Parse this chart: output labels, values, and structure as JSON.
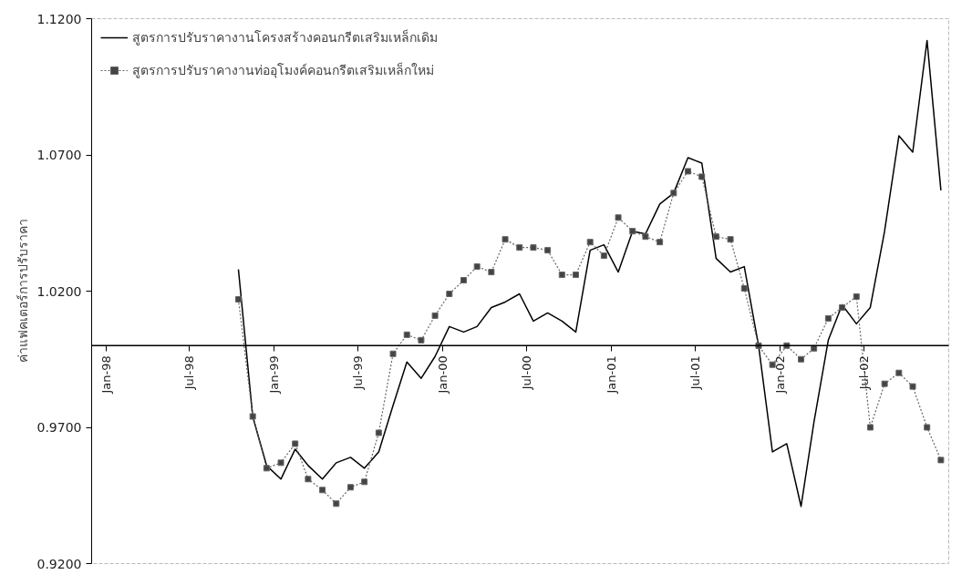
{
  "chart_data": {
    "type": "line",
    "ylabel": "ค่าแฟคเตอร์การปรับราคา",
    "x": [
      "1998-10-15",
      "1998-11-15",
      "1998-12-15",
      "1999-01-15",
      "1999-02-15",
      "1999-03-15",
      "1999-04-15",
      "1999-05-15",
      "1999-06-15",
      "1999-07-15",
      "1999-08-15",
      "1999-09-15",
      "1999-10-15",
      "1999-11-15",
      "1999-12-15",
      "2000-01-15",
      "2000-02-15",
      "2000-03-15",
      "2000-04-15",
      "2000-05-15",
      "2000-06-15",
      "2000-07-15",
      "2000-08-15",
      "2000-09-15",
      "2000-10-15",
      "2000-11-15",
      "2000-12-15",
      "2001-01-15",
      "2001-02-15",
      "2001-03-15",
      "2001-04-15",
      "2001-05-15",
      "2001-06-15",
      "2001-07-15",
      "2001-08-15",
      "2001-09-15",
      "2001-10-15",
      "2001-11-15",
      "2001-12-15",
      "2002-01-15",
      "2002-02-15",
      "2002-03-15",
      "2002-04-15",
      "2002-05-15",
      "2002-06-15",
      "2002-07-15",
      "2002-08-15",
      "2002-09-15",
      "2002-10-15",
      "2002-11-15",
      "2002-12-15"
    ],
    "series": [
      {
        "name": "สูตรการปรับราคางานโครงสร้างคอนกรีตเสริมเหล็กเดิม",
        "color": "#000000",
        "marker": "none",
        "line_style": "solid",
        "values": [
          1.028,
          0.974,
          0.956,
          0.951,
          0.962,
          0.956,
          0.951,
          0.957,
          0.959,
          0.955,
          0.961,
          0.978,
          0.994,
          0.988,
          0.996,
          1.007,
          1.005,
          1.007,
          1.014,
          1.016,
          1.019,
          1.009,
          1.012,
          1.009,
          1.005,
          1.035,
          1.037,
          1.027,
          1.042,
          1.041,
          1.052,
          1.056,
          1.069,
          1.067,
          1.032,
          1.027,
          1.029,
          1.0,
          0.961,
          0.964,
          0.941,
          0.972,
          1.002,
          1.015,
          1.008,
          1.014,
          1.042,
          1.077,
          1.071,
          1.112,
          1.057
        ]
      },
      {
        "name": "สูตรการปรับราคางานท่ออุโมงค์คอนกรีตเสริมเหล็กใหม่",
        "color": "#666666",
        "marker": "square",
        "line_style": "dotted",
        "values": [
          1.017,
          0.974,
          0.955,
          0.957,
          0.964,
          0.951,
          0.947,
          0.942,
          0.948,
          0.95,
          0.968,
          0.997,
          1.004,
          1.002,
          1.011,
          1.019,
          1.024,
          1.029,
          1.027,
          1.039,
          1.036,
          1.036,
          1.035,
          1.026,
          1.026,
          1.038,
          1.033,
          1.047,
          1.042,
          1.04,
          1.038,
          1.056,
          1.064,
          1.062,
          1.04,
          1.039,
          1.021,
          1.0,
          0.993,
          1.0,
          0.995,
          0.999,
          1.01,
          1.014,
          1.018,
          0.97,
          0.986,
          0.99,
          0.985,
          0.97,
          0.958
        ]
      }
    ],
    "xlim": [
      "1997-12",
      "2003-01"
    ],
    "xticks": [
      {
        "value": "1998-01",
        "label": "Jan-98"
      },
      {
        "value": "1998-07",
        "label": "Jul-98"
      },
      {
        "value": "1999-01",
        "label": "Jan-99"
      },
      {
        "value": "1999-07",
        "label": "Jul-99"
      },
      {
        "value": "2000-01",
        "label": "Jan-00"
      },
      {
        "value": "2000-07",
        "label": "Jul-00"
      },
      {
        "value": "2001-01",
        "label": "Jan-01"
      },
      {
        "value": "2001-07",
        "label": "Jul-01"
      },
      {
        "value": "2002-01",
        "label": "Jan-02"
      },
      {
        "value": "2002-07",
        "label": "Jul-02"
      }
    ],
    "ylim": [
      0.92,
      1.12
    ],
    "yticks": [
      {
        "value": 0.92,
        "label": "0.9200"
      },
      {
        "value": 0.97,
        "label": "0.9700"
      },
      {
        "value": 1.02,
        "label": "1.0200"
      },
      {
        "value": 1.07,
        "label": "1.0700"
      },
      {
        "value": 1.12,
        "label": "1.1200"
      }
    ],
    "ref_lines": [
      {
        "axis": "y",
        "value": 1.0,
        "color": "#000000"
      }
    ],
    "grid": false,
    "legend": "top left"
  }
}
